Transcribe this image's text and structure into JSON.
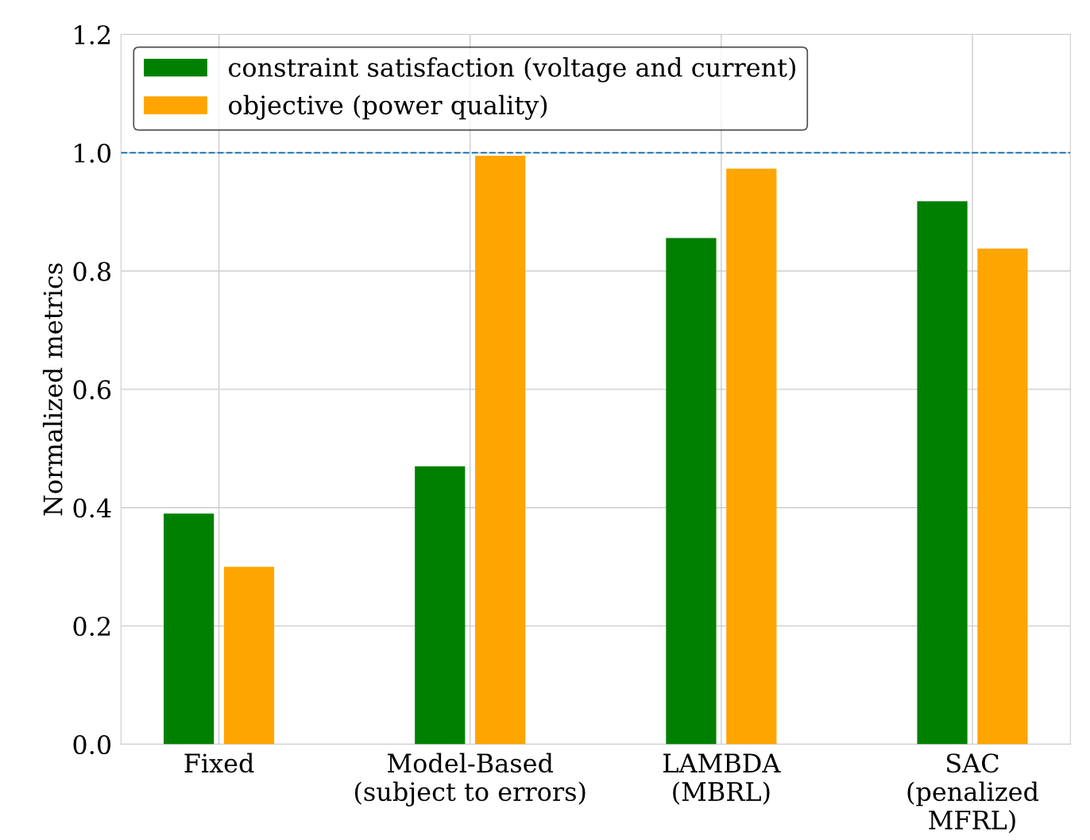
{
  "chart_data": {
    "type": "bar",
    "ylabel": "Normalized metrics",
    "categories": [
      "Fixed",
      "Model-Based\n(subject to errors)",
      "LAMBDA\n(MBRL)",
      "SAC\n(penalized\nMFRL)"
    ],
    "series": [
      {
        "name": "constraint satisfaction (voltage and current)",
        "color": "#008000",
        "values": [
          0.39,
          0.47,
          0.856,
          0.918
        ]
      },
      {
        "name": "objective (power quality)",
        "color": "#ffa500",
        "values": [
          0.3,
          0.995,
          0.973,
          0.838
        ]
      }
    ],
    "ylim": [
      0,
      1.2
    ],
    "yticks": [
      {
        "value": 0,
        "label": "0.0"
      },
      0.2,
      0.4,
      0.6,
      0.8,
      {
        "value": 1,
        "label": "1.0"
      },
      1.2
    ],
    "ref_lines": [
      {
        "axis": "y",
        "value": 1.0,
        "label": null,
        "color": "#1f77b4",
        "line_style": "dashed"
      }
    ],
    "grid": true,
    "legend": "top left"
  }
}
